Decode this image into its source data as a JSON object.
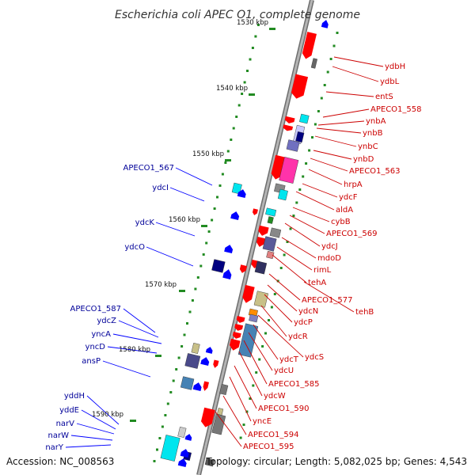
{
  "title": "Escherichia coli APEC O1, complete genome",
  "footer": {
    "accession": "Accession: NC_008563",
    "topology": "Topology: circular; Length: 5,082,025 bp; Genes: 4,543"
  },
  "scale_labels": [
    "1530 kbp",
    "1540 kbp",
    "1550 kbp",
    "1560 kbp",
    "1570 kbp",
    "1580 kbp",
    "1590 kbp"
  ],
  "forward_genes": [
    "ydbH",
    "ydbL",
    "entS",
    "APECO1_558",
    "ynbA",
    "ynbB",
    "ynbC",
    "ynbD",
    "APECO1_563",
    "hrpA",
    "ydcF",
    "aldA",
    "cybB",
    "APECO1_569",
    "ydcJ",
    "mdoD",
    "rimL",
    "tehA",
    "APECO1_577",
    "tehB",
    "ydcN",
    "ydcP",
    "ydcR",
    "ydcS",
    "ydcT",
    "ydcU",
    "APECO1_585",
    "ydcW",
    "APECO1_590",
    "yncE",
    "APECO1_594",
    "APECO1_595"
  ],
  "reverse_genes": [
    "APECO1_567",
    "ydcI",
    "ydcK",
    "ydcO",
    "APECO1_587",
    "ydcZ",
    "yncA",
    "yncD",
    "ansP",
    "yddH",
    "yddE",
    "narV",
    "narW",
    "narY"
  ],
  "colors": {
    "forward": "#ff0000",
    "reverse": "#0000ff",
    "forward_label": "#cc0000",
    "reverse_label": "#000099",
    "backbone": "#9a9a9a",
    "gc_skew": "#228b22",
    "highlight": "#ff33aa",
    "cds_cyan": "#00e5ee"
  }
}
